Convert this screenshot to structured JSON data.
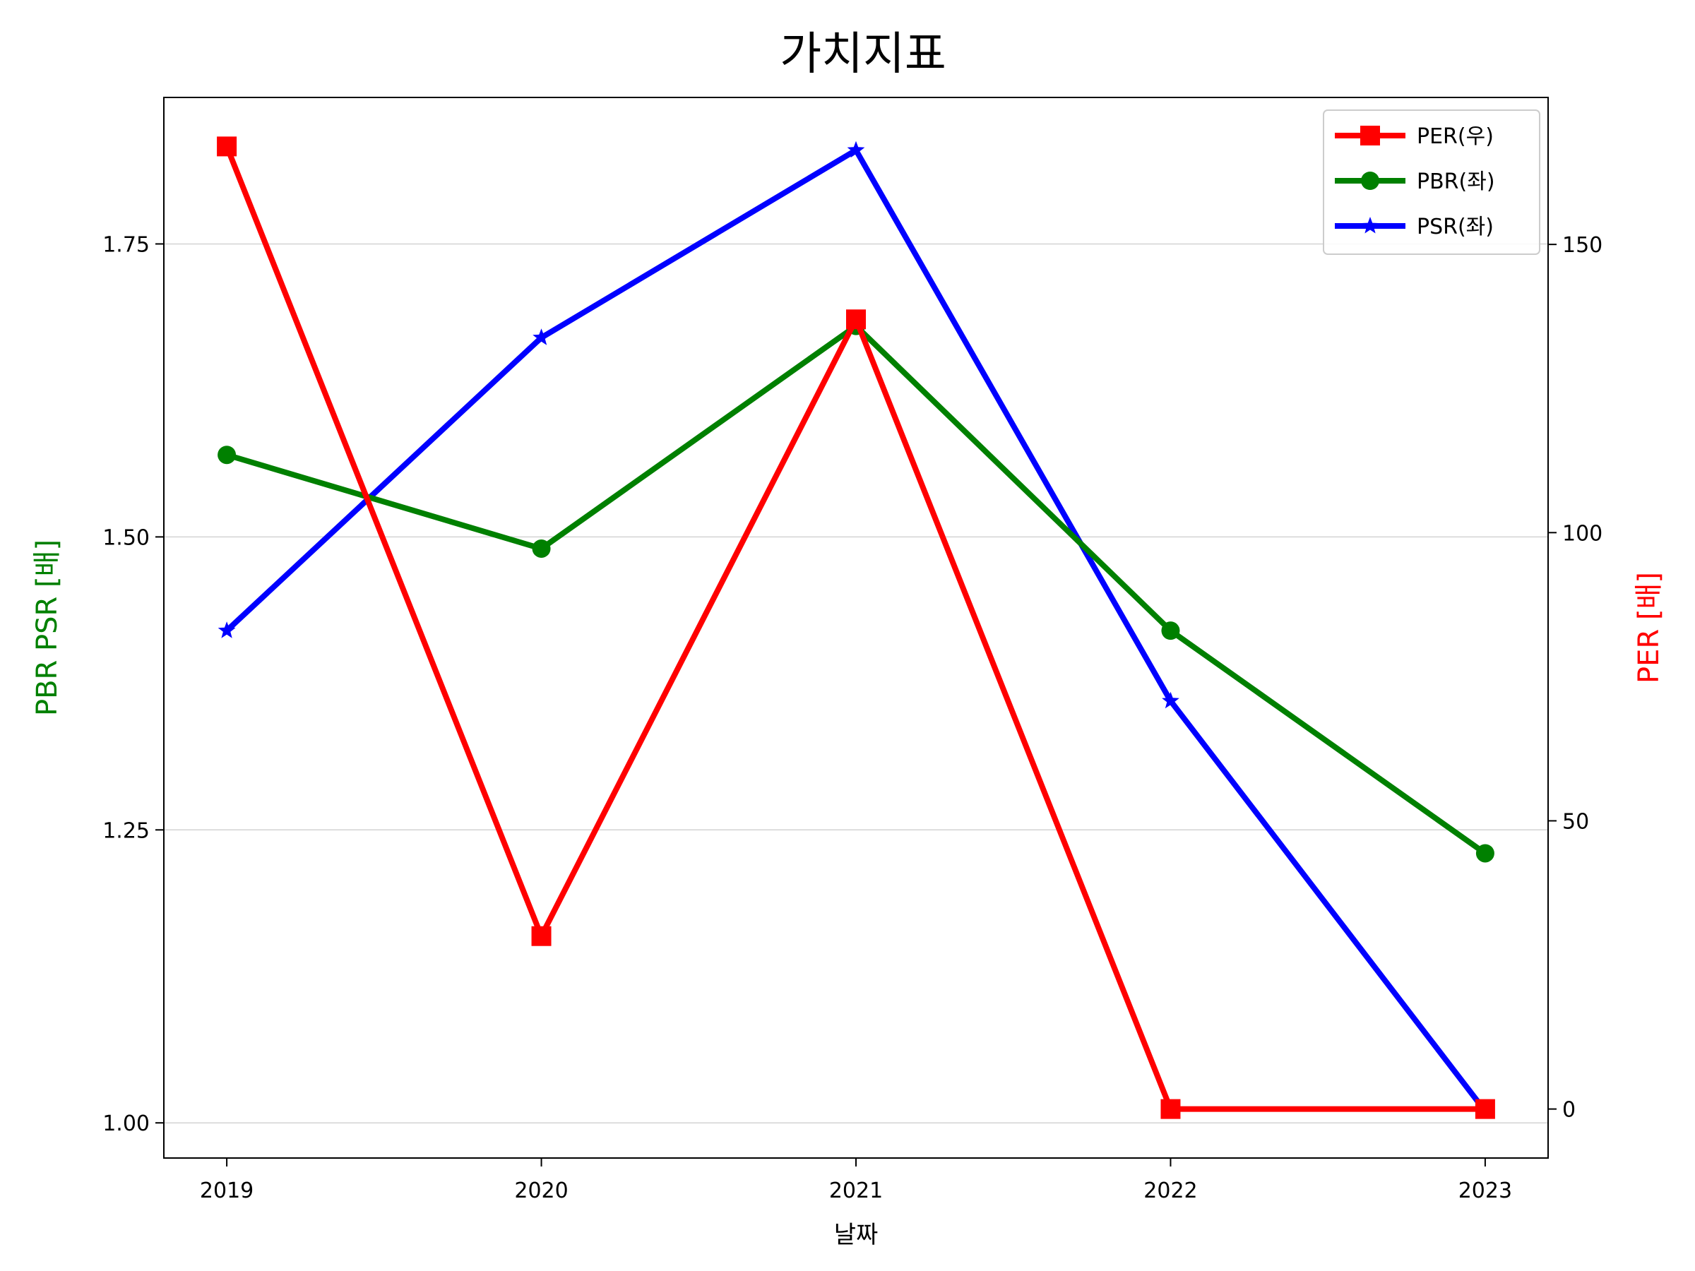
{
  "chart_data": {
    "type": "line",
    "title": "가치지표",
    "xlabel": "날짜",
    "ylabel_left": "PBR PSR [배]",
    "ylabel_right": "PER [배]",
    "categories": [
      "2019",
      "2020",
      "2021",
      "2022",
      "2023"
    ],
    "ylim_left": [
      0.97,
      1.875
    ],
    "ylim_right": [
      -8.5,
      175.5
    ],
    "yticks_left": [
      "1.00",
      "1.25",
      "1.50",
      "1.75"
    ],
    "yticks_right": [
      "0",
      "50",
      "100",
      "150"
    ],
    "grid": true,
    "legend_position": "top-right",
    "series": [
      {
        "name": "PER(우)",
        "axis": "right",
        "color": "#ff0000",
        "marker": "square",
        "values": [
          167,
          30,
          137,
          0,
          0
        ]
      },
      {
        "name": "PBR(좌)",
        "axis": "left",
        "color": "#008000",
        "marker": "circle",
        "values": [
          1.57,
          1.49,
          1.68,
          1.42,
          1.23
        ]
      },
      {
        "name": "PSR(좌)",
        "axis": "left",
        "color": "#0000ff",
        "marker": "star",
        "values": [
          1.42,
          1.67,
          1.83,
          1.36,
          1.01
        ]
      }
    ],
    "colors": {
      "left_axis_label": "#008000",
      "right_axis_label": "#ff0000",
      "grid": "#d3d3d3"
    }
  }
}
